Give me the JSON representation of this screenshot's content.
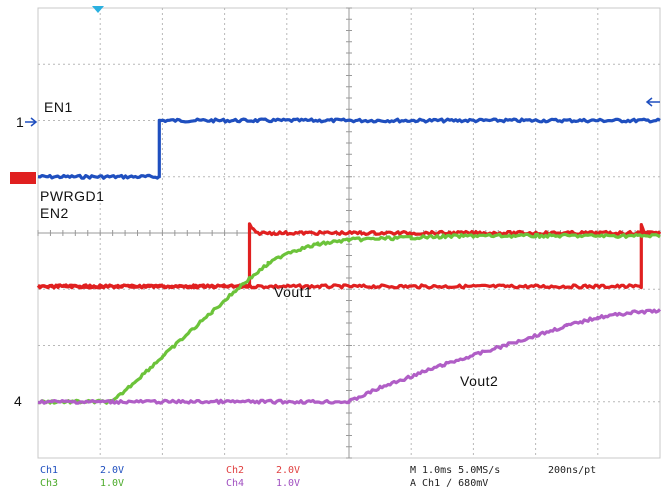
{
  "chart_data": {
    "type": "line",
    "x_unit": "ms",
    "xlim": [
      0,
      10
    ],
    "ylim": [
      -4,
      4
    ],
    "grid": true,
    "series": [
      {
        "name": "EN1",
        "channel": "Ch1",
        "color": "#1f4fbf",
        "volts_per_div": 2.0,
        "ground_div": 1.0,
        "x": [
          0,
          1.95,
          1.95,
          10
        ],
        "y": [
          1.0,
          1.0,
          2.0,
          2.0
        ]
      },
      {
        "name": "PWRGD1",
        "channel": "Ch2",
        "color": "#e02020",
        "volts_per_div": 2.0,
        "ground_div": -0.95,
        "x": [
          0,
          9.7,
          9.7,
          9.75,
          10
        ],
        "y": [
          -0.95,
          -0.95,
          0.15,
          0.0,
          0.0
        ]
      },
      {
        "name": "EN2",
        "channel": "Ch2",
        "color": "#e02020",
        "volts_per_div": 2.0,
        "ground_div": 0.0,
        "x": [
          0,
          3.4,
          3.4,
          3.5,
          10
        ],
        "y": [
          -0.95,
          -0.95,
          0.15,
          0.0,
          0.0
        ]
      },
      {
        "name": "Vout1",
        "channel": "Ch3",
        "color": "#6cc33a",
        "volts_per_div": 1.0,
        "ground_div": -3.0,
        "x": [
          0,
          1.2,
          2.0,
          2.8,
          3.3,
          3.7,
          4.0,
          4.5,
          5.0,
          6.0,
          7.0,
          8.0,
          10.0
        ],
        "y": [
          -3.0,
          -3.0,
          -2.2,
          -1.4,
          -0.9,
          -0.55,
          -0.35,
          -0.2,
          -0.12,
          -0.08,
          -0.05,
          -0.05,
          -0.05
        ]
      },
      {
        "name": "Vout2",
        "channel": "Ch4",
        "color": "#b05ec6",
        "volts_per_div": 1.0,
        "ground_div": -3.0,
        "x": [
          0,
          1.2,
          5.0,
          5.5,
          6.5,
          7.5,
          8.5,
          9.0,
          9.5,
          10.0
        ],
        "y": [
          -3.0,
          -3.0,
          -3.0,
          -2.75,
          -2.35,
          -2.0,
          -1.65,
          -1.5,
          -1.42,
          -1.38
        ]
      }
    ],
    "labels": {
      "en1": "EN1",
      "pwrgd1": "PWRGD1",
      "en2": "EN2",
      "vout1": "Vout1",
      "vout2": "Vout2"
    },
    "markers": {
      "ch1_ground": "1",
      "ch4_ground": "4"
    },
    "status": {
      "ch1": "Ch1",
      "ch1_scale": "2.0V",
      "ch2": "Ch2",
      "ch2_scale": "2.0V",
      "ch3": "Ch3",
      "ch3_scale": "1.0V",
      "ch4": "Ch4",
      "ch4_scale": "1.0V",
      "timebase": "M 1.0ms 5.0MS/s",
      "resolution": "200ns/pt",
      "trigger": "A  Ch1  ∕  680mV"
    }
  }
}
